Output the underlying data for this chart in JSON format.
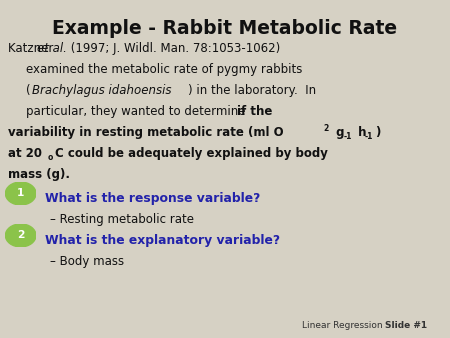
{
  "title": "Example - Rabbit Metabolic Rate",
  "bg_color": "#d6d1c4",
  "title_color": "#111111",
  "title_fontsize": 13.5,
  "body_fontsize": 8.5,
  "blue_color": "#2222aa",
  "bullet_circle_color": "#8bc34a",
  "footer_text": "Linear Regression",
  "footer_slide": "Slide #1",
  "footer_color": "#333333",
  "footer_fontsize": 6.5
}
